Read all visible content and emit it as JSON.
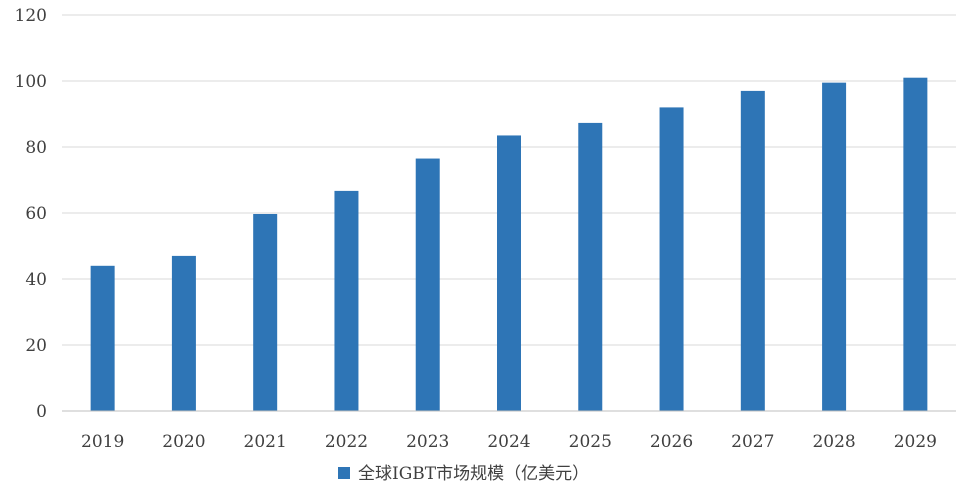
{
  "chart_data": {
    "type": "bar",
    "title": "",
    "xlabel": "",
    "ylabel": "",
    "categories": [
      "2019",
      "2020",
      "2021",
      "2022",
      "2023",
      "2024",
      "2025",
      "2026",
      "2027",
      "2028",
      "2029"
    ],
    "series": [
      {
        "name": "全球IGBT市场规模（亿美元）",
        "values": [
          44,
          47,
          59.7,
          66.7,
          76.5,
          83.5,
          87.3,
          92,
          97,
          99.5,
          101
        ]
      }
    ],
    "ylim": [
      0,
      120
    ],
    "yticks": [
      "0",
      "20",
      "40",
      "60",
      "80",
      "100",
      "120"
    ],
    "grid": true,
    "legend_position": "bottom",
    "colors": {
      "bar": "#2e75b6",
      "grid": "#d9d9d9",
      "axis": "#bfbfbf",
      "text": "#404040"
    }
  }
}
